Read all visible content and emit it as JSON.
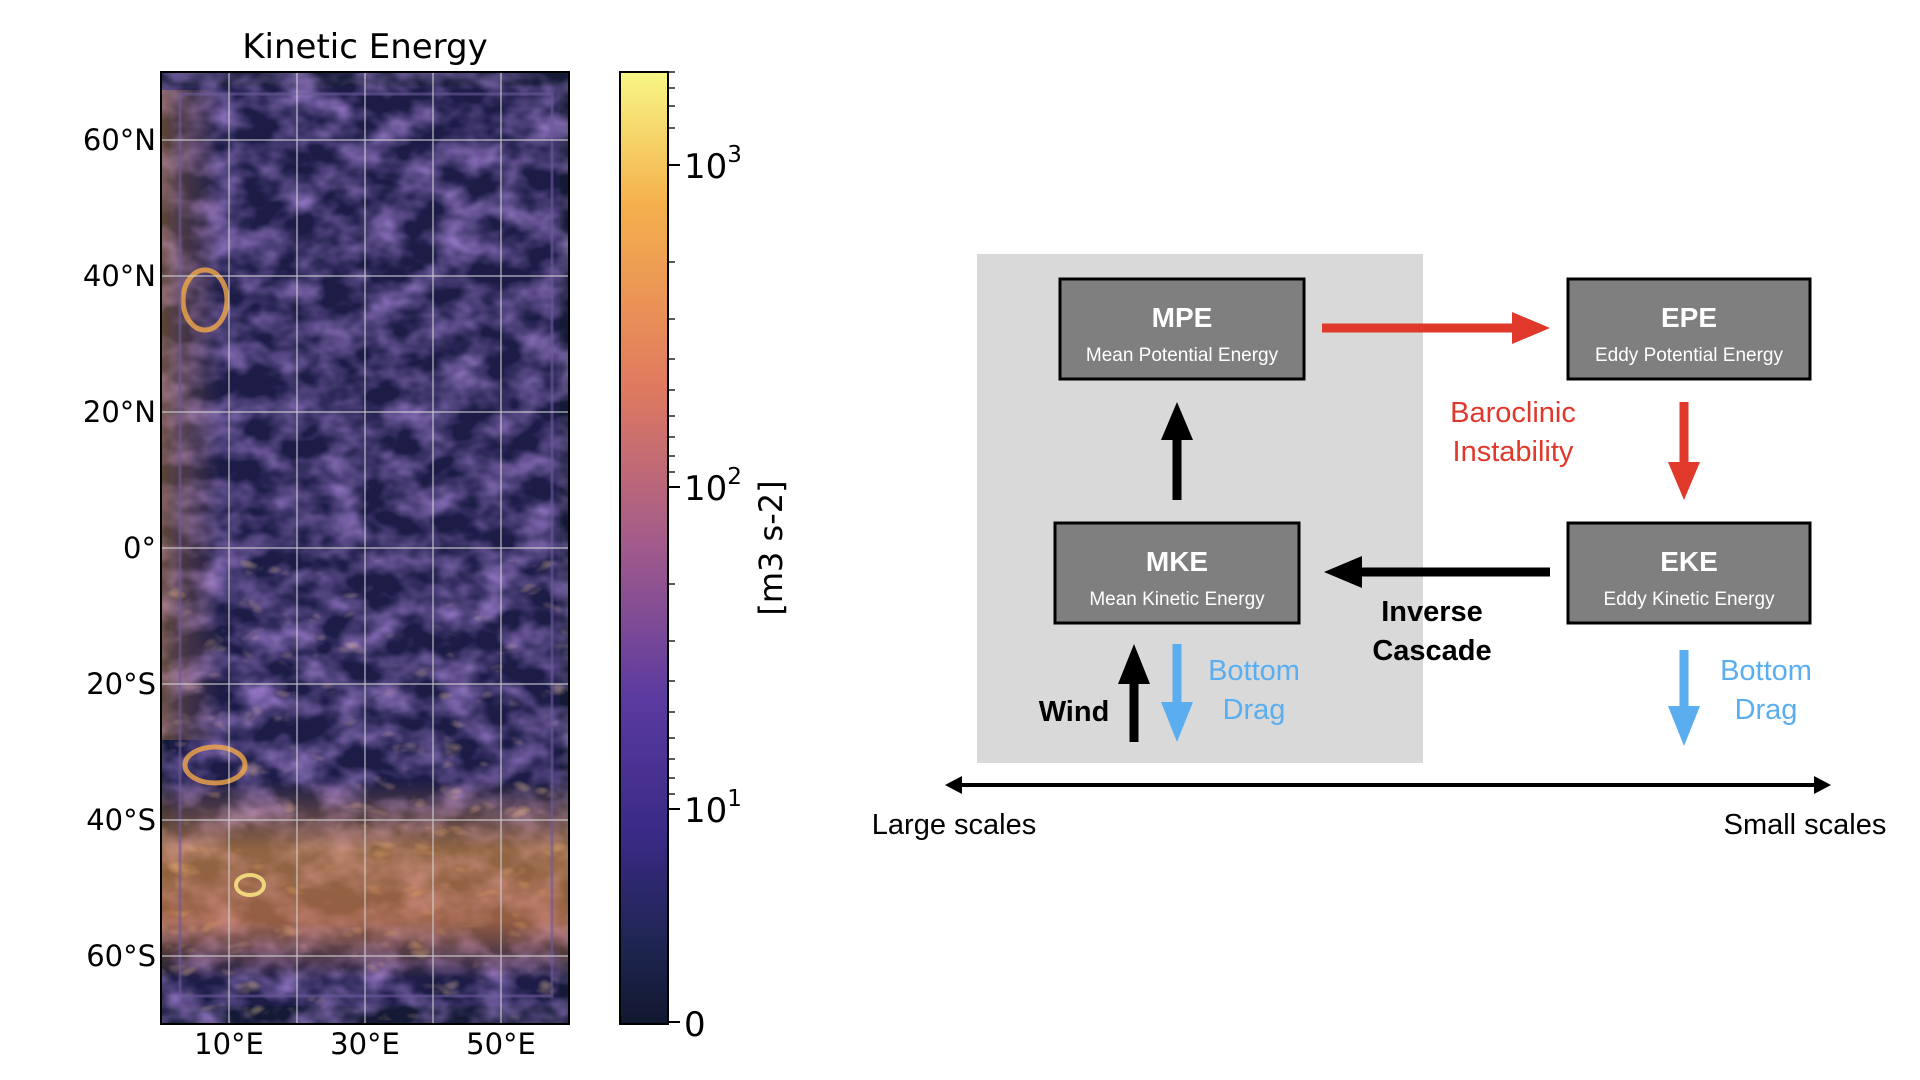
{
  "map": {
    "title": "Kinetic Energy",
    "lat_labels": [
      "60°N",
      "40°N",
      "20°N",
      "0°",
      "20°S",
      "40°S",
      "60°S"
    ],
    "lon_labels": [
      "10°E",
      "30°E",
      "50°E"
    ],
    "colorbar": {
      "label": "[m3 s-2]",
      "ticks": [
        {
          "base": "10",
          "exp": "3"
        },
        {
          "base": "10",
          "exp": "2"
        },
        {
          "base": "10",
          "exp": "1"
        },
        {
          "base": "0",
          "exp": ""
        }
      ],
      "colors": [
        "#f7f785",
        "#f5b04c",
        "#e07a5f",
        "#a05a8c",
        "#5a3aa0",
        "#3a2a86",
        "#1d2550",
        "#12172f"
      ]
    }
  },
  "diagram": {
    "mpe": {
      "abbr": "MPE",
      "name": "Mean Potential Energy"
    },
    "epe": {
      "abbr": "EPE",
      "name": "Eddy Potential Energy"
    },
    "mke": {
      "abbr": "MKE",
      "name": "Mean Kinetic Energy"
    },
    "eke": {
      "abbr": "EKE",
      "name": "Eddy Kinetic Energy"
    },
    "baroclinic": [
      "Baroclinic",
      "Instability"
    ],
    "inverse": [
      "Inverse",
      "Cascade"
    ],
    "wind": "Wind",
    "bottom_drag_left": [
      "Bottom",
      "Drag"
    ],
    "bottom_drag_right": [
      "Bottom",
      "Drag"
    ],
    "scale_left": "Large scales",
    "scale_right": "Small scales",
    "colors": {
      "red": "#e0392b",
      "blue": "#5aaef0",
      "box_fill": "#7f7f7f",
      "panel": "#d9d9d9"
    }
  }
}
